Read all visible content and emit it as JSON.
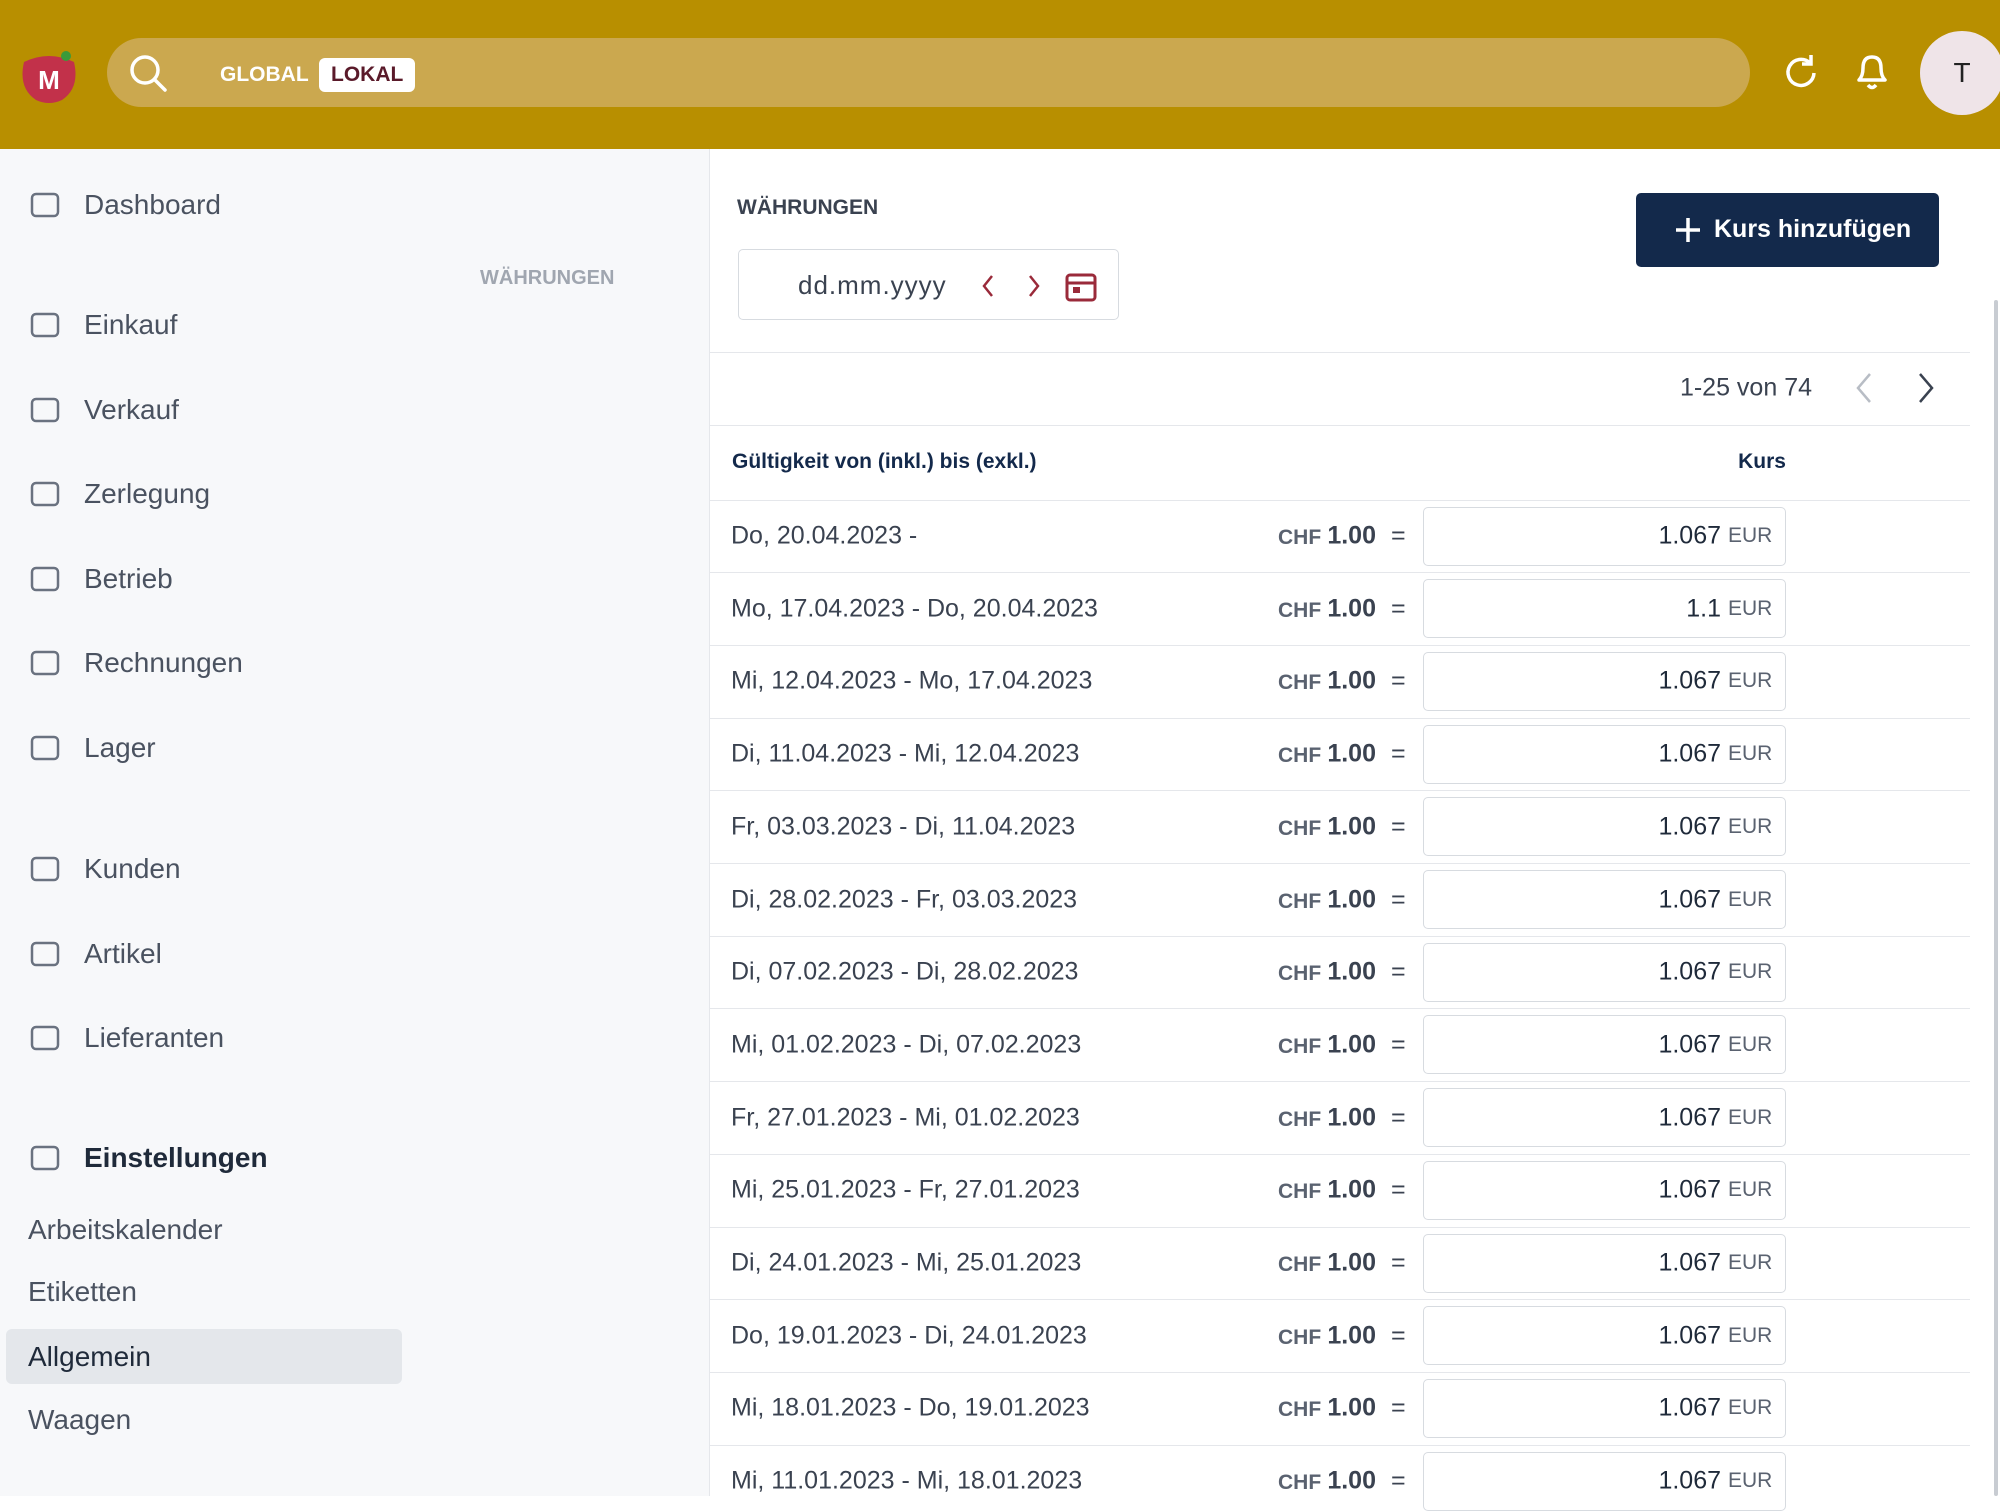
{
  "header": {
    "logo": "M",
    "scopes": [
      "GLOBAL",
      "LOKAL"
    ],
    "avatar": "T"
  },
  "sidebar": {
    "dashboard": "Dashboard",
    "section_label": "WÄHRUNGEN",
    "groups": [
      [
        "Einkauf",
        "Verkauf",
        "Zerlegung",
        "Betrieb",
        "Rechnungen",
        "Lager"
      ],
      [
        "Kunden",
        "Artikel",
        "Lieferanten"
      ]
    ],
    "settings": {
      "title": "Einstellungen",
      "items": [
        "Arbeitskalender",
        "Etiketten",
        "Allgemein",
        "Waagen"
      ],
      "active": "Allgemein"
    }
  },
  "main": {
    "title": "WÄHRUNGEN",
    "date_placeholder": "dd.mm.yyyy",
    "add_button": "Kurs hinzufügen",
    "pagination": "1-25 von 74",
    "table": {
      "columns": [
        "Gültigkeit von (inkl.) bis (exkl.)",
        "Kurs"
      ],
      "rows": [
        [
          "Do, 20.04.2023 -",
          "CHF",
          "1.00",
          "=",
          "1.067",
          "EUR"
        ],
        [
          "Mo, 17.04.2023 - Do, 20.04.2023",
          "CHF",
          "1.00",
          "=",
          "1.1",
          "EUR"
        ],
        [
          "Mi, 12.04.2023 - Mo, 17.04.2023",
          "CHF",
          "1.00",
          "=",
          "1.067",
          "EUR"
        ],
        [
          "Di, 11.04.2023 - Mi, 12.04.2023",
          "CHF",
          "1.00",
          "=",
          "1.067",
          "EUR"
        ],
        [
          "Fr, 03.03.2023 - Di, 11.04.2023",
          "CHF",
          "1.00",
          "=",
          "1.067",
          "EUR"
        ],
        [
          "Di, 28.02.2023 - Fr, 03.03.2023",
          "CHF",
          "1.00",
          "=",
          "1.067",
          "EUR"
        ],
        [
          "Di, 07.02.2023 - Di, 28.02.2023",
          "CHF",
          "1.00",
          "=",
          "1.067",
          "EUR"
        ],
        [
          "Mi, 01.02.2023 - Di, 07.02.2023",
          "CHF",
          "1.00",
          "=",
          "1.067",
          "EUR"
        ],
        [
          "Fr, 27.01.2023 - Mi, 01.02.2023",
          "CHF",
          "1.00",
          "=",
          "1.067",
          "EUR"
        ],
        [
          "Mi, 25.01.2023 - Fr, 27.01.2023",
          "CHF",
          "1.00",
          "=",
          "1.067",
          "EUR"
        ],
        [
          "Di, 24.01.2023 - Mi, 25.01.2023",
          "CHF",
          "1.00",
          "=",
          "1.067",
          "EUR"
        ],
        [
          "Do, 19.01.2023 - Di, 24.01.2023",
          "CHF",
          "1.00",
          "=",
          "1.067",
          "EUR"
        ],
        [
          "Mi, 18.01.2023 - Do, 19.01.2023",
          "CHF",
          "1.00",
          "=",
          "1.067",
          "EUR"
        ],
        [
          "Mi, 11.01.2023 - Mi, 18.01.2023",
          "CHF",
          "1.00",
          "=",
          "1.067",
          "EUR"
        ]
      ]
    }
  }
}
